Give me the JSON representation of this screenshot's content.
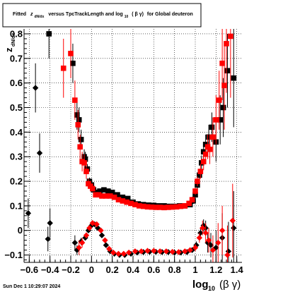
{
  "stats_box": {
    "title_prefix": "Fitted",
    "title_z": "z",
    "title_z_sub": "dN/dx",
    "title_mid": "versus TpcTrackLength and log",
    "title_log_sub": "10",
    "title_paren": "( β γ)",
    "title_suffix": "for Global deuteron"
  },
  "footer": {
    "timestamp": "Sun Dec  1 10:29:07 2024"
  },
  "chart_data": {
    "type": "scatter",
    "ylabel": {
      "main": "z",
      "sub": "dN/dx"
    },
    "xlabel": {
      "main": "log",
      "sub": "10",
      "suffix": "(β γ)"
    },
    "xlim": [
      -0.65,
      1.45
    ],
    "ylim": [
      -0.13,
      0.82
    ],
    "x_ticks": [
      -0.6,
      -0.4,
      -0.2,
      0,
      0.2,
      0.4,
      0.6,
      0.8,
      1,
      1.2,
      1.4
    ],
    "x_tick_labels": [
      "−0.6",
      "−0.4",
      "−0.2",
      "0",
      "0.2",
      "0.4",
      "0.6",
      "0.8",
      "1",
      "1.2",
      "1.4"
    ],
    "y_ticks": [
      -0.1,
      0,
      0.1,
      0.2,
      0.3,
      0.4,
      0.5,
      0.6,
      0.7,
      0.8
    ],
    "y_tick_labels": [
      "−0.1",
      "0",
      "0.1",
      "0.2",
      "0.3",
      "0.4",
      "0.5",
      "0.6",
      "0.7",
      "0.8"
    ],
    "grid": true,
    "colors": {
      "black": "#000000",
      "red": "#ff0000"
    },
    "series": [
      {
        "marker": "square",
        "color": "#000000",
        "points": [
          [
            -0.41,
            0.8,
            0.1
          ],
          [
            -0.18,
            0.68,
            0.08
          ],
          [
            -0.14,
            0.47,
            0.06
          ],
          [
            -0.12,
            0.45,
            0.05
          ],
          [
            -0.1,
            0.37,
            0.04
          ],
          [
            -0.07,
            0.3,
            0.03
          ],
          [
            -0.06,
            0.29,
            0.03
          ],
          [
            -0.04,
            0.25,
            0.02
          ],
          [
            -0.02,
            0.2,
            0.015
          ],
          [
            0.0,
            0.185,
            0.012
          ],
          [
            0.02,
            0.165,
            0.01
          ],
          [
            0.05,
            0.155,
            0.008
          ],
          [
            0.08,
            0.16,
            0.007
          ],
          [
            0.12,
            0.165,
            0.006
          ],
          [
            0.16,
            0.16,
            0.006
          ],
          [
            0.2,
            0.155,
            0.006
          ],
          [
            0.25,
            0.145,
            0.006
          ],
          [
            0.3,
            0.135,
            0.006
          ],
          [
            0.35,
            0.13,
            0.006
          ],
          [
            0.4,
            0.115,
            0.006
          ],
          [
            0.45,
            0.108,
            0.006
          ],
          [
            0.5,
            0.105,
            0.006
          ],
          [
            0.55,
            0.103,
            0.006
          ],
          [
            0.6,
            0.102,
            0.006
          ],
          [
            0.65,
            0.1,
            0.006
          ],
          [
            0.7,
            0.1,
            0.006
          ],
          [
            0.75,
            0.098,
            0.006
          ],
          [
            0.8,
            0.098,
            0.006
          ],
          [
            0.85,
            0.1,
            0.007
          ],
          [
            0.9,
            0.1,
            0.008
          ],
          [
            0.95,
            0.105,
            0.01
          ],
          [
            0.98,
            0.12,
            0.012
          ],
          [
            1.0,
            0.145,
            0.015
          ],
          [
            1.02,
            0.185,
            0.02
          ],
          [
            1.04,
            0.225,
            0.025
          ],
          [
            1.06,
            0.275,
            0.03
          ],
          [
            1.08,
            0.32,
            0.035
          ],
          [
            1.1,
            0.35,
            0.04
          ],
          [
            1.13,
            0.38,
            0.05
          ],
          [
            1.16,
            0.42,
            0.06
          ],
          [
            1.2,
            0.36,
            0.08
          ],
          [
            1.24,
            0.45,
            0.1
          ],
          [
            1.27,
            0.5,
            0.12
          ],
          [
            1.31,
            0.65,
            0.15
          ],
          [
            1.37,
            0.62,
            0.2
          ]
        ]
      },
      {
        "marker": "square",
        "color": "#ff0000",
        "points": [
          [
            -0.27,
            0.66,
            0.12
          ],
          [
            -0.2,
            0.72,
            0.1
          ],
          [
            -0.16,
            0.53,
            0.08
          ],
          [
            -0.13,
            0.43,
            0.06
          ],
          [
            -0.11,
            0.34,
            0.05
          ],
          [
            -0.09,
            0.28,
            0.04
          ],
          [
            -0.07,
            0.275,
            0.035
          ],
          [
            -0.05,
            0.24,
            0.03
          ],
          [
            -0.03,
            0.19,
            0.02
          ],
          [
            -0.01,
            0.18,
            0.015
          ],
          [
            0.01,
            0.17,
            0.012
          ],
          [
            0.04,
            0.145,
            0.01
          ],
          [
            0.07,
            0.145,
            0.008
          ],
          [
            0.1,
            0.14,
            0.007
          ],
          [
            0.14,
            0.14,
            0.007
          ],
          [
            0.18,
            0.14,
            0.007
          ],
          [
            0.22,
            0.135,
            0.007
          ],
          [
            0.26,
            0.125,
            0.007
          ],
          [
            0.3,
            0.12,
            0.007
          ],
          [
            0.34,
            0.115,
            0.007
          ],
          [
            0.38,
            0.11,
            0.007
          ],
          [
            0.42,
            0.105,
            0.007
          ],
          [
            0.46,
            0.1,
            0.007
          ],
          [
            0.5,
            0.098,
            0.007
          ],
          [
            0.54,
            0.096,
            0.007
          ],
          [
            0.58,
            0.095,
            0.007
          ],
          [
            0.62,
            0.094,
            0.007
          ],
          [
            0.66,
            0.094,
            0.007
          ],
          [
            0.7,
            0.093,
            0.007
          ],
          [
            0.74,
            0.094,
            0.007
          ],
          [
            0.78,
            0.095,
            0.007
          ],
          [
            0.82,
            0.096,
            0.007
          ],
          [
            0.86,
            0.098,
            0.008
          ],
          [
            0.9,
            0.1,
            0.009
          ],
          [
            0.94,
            0.11,
            0.01
          ],
          [
            0.97,
            0.125,
            0.012
          ],
          [
            1.0,
            0.16,
            0.015
          ],
          [
            1.02,
            0.2,
            0.02
          ],
          [
            1.05,
            0.24,
            0.03
          ],
          [
            1.08,
            0.28,
            0.035
          ],
          [
            1.1,
            0.31,
            0.04
          ],
          [
            1.12,
            0.34,
            0.05
          ],
          [
            1.14,
            0.33,
            0.06
          ],
          [
            1.17,
            0.38,
            0.08
          ],
          [
            1.2,
            0.45,
            0.1
          ],
          [
            1.23,
            0.53,
            0.12
          ],
          [
            1.26,
            0.68,
            0.15
          ],
          [
            1.28,
            0.59,
            0.18
          ],
          [
            1.3,
            0.76,
            0.2
          ],
          [
            1.34,
            0.79,
            0.25
          ]
        ]
      },
      {
        "marker": "diamond",
        "color": "#000000",
        "points": [
          [
            -0.61,
            0.07,
            0.06
          ],
          [
            -0.54,
            0.58,
            0.1
          ],
          [
            -0.5,
            0.315,
            0.08
          ],
          [
            -0.42,
            -0.035,
            0.05
          ],
          [
            -0.4,
            0.03,
            0.06
          ],
          [
            -0.16,
            -0.05,
            0.03
          ],
          [
            -0.14,
            -0.08,
            0.02
          ],
          [
            -0.1,
            -0.045,
            0.015
          ],
          [
            -0.06,
            -0.03,
            0.01
          ],
          [
            -0.03,
            0.0,
            0.008
          ],
          [
            0.0,
            0.02,
            0.006
          ],
          [
            0.03,
            0.025,
            0.005
          ],
          [
            0.06,
            0.01,
            0.005
          ],
          [
            0.1,
            -0.02,
            0.005
          ],
          [
            0.14,
            -0.06,
            0.005
          ],
          [
            0.18,
            -0.085,
            0.005
          ],
          [
            0.22,
            -0.095,
            0.005
          ],
          [
            0.27,
            -0.1,
            0.005
          ],
          [
            0.32,
            -0.1,
            0.005
          ],
          [
            0.38,
            -0.095,
            0.005
          ],
          [
            0.44,
            -0.09,
            0.005
          ],
          [
            0.5,
            -0.088,
            0.005
          ],
          [
            0.56,
            -0.087,
            0.005
          ],
          [
            0.62,
            -0.087,
            0.005
          ],
          [
            0.68,
            -0.088,
            0.005
          ],
          [
            0.74,
            -0.088,
            0.005
          ],
          [
            0.8,
            -0.09,
            0.006
          ],
          [
            0.86,
            -0.09,
            0.007
          ],
          [
            0.92,
            -0.088,
            0.008
          ],
          [
            0.97,
            -0.08,
            0.01
          ],
          [
            1.01,
            -0.06,
            0.015
          ],
          [
            1.05,
            -0.01,
            0.02
          ],
          [
            1.08,
            0.02,
            0.025
          ],
          [
            1.1,
            0.01,
            0.03
          ],
          [
            1.12,
            -0.05,
            0.04
          ],
          [
            1.15,
            -0.06,
            0.05
          ],
          [
            1.2,
            -0.07,
            0.07
          ],
          [
            1.26,
            -0.03,
            0.1
          ],
          [
            1.32,
            -0.085,
            0.12
          ],
          [
            1.37,
            0.01,
            0.15
          ]
        ]
      },
      {
        "marker": "diamond",
        "color": "#ff0000",
        "points": [
          [
            -0.12,
            -0.07,
            0.03
          ],
          [
            -0.09,
            -0.05,
            0.02
          ],
          [
            -0.05,
            -0.02,
            0.012
          ],
          [
            -0.02,
            0.01,
            0.008
          ],
          [
            0.01,
            0.03,
            0.006
          ],
          [
            0.05,
            0.025,
            0.005
          ],
          [
            0.09,
            0.0,
            0.005
          ],
          [
            0.13,
            -0.04,
            0.005
          ],
          [
            0.17,
            -0.075,
            0.005
          ],
          [
            0.21,
            -0.09,
            0.005
          ],
          [
            0.26,
            -0.095,
            0.005
          ],
          [
            0.31,
            -0.095,
            0.005
          ],
          [
            0.36,
            -0.09,
            0.005
          ],
          [
            0.42,
            -0.085,
            0.005
          ],
          [
            0.48,
            -0.085,
            0.005
          ],
          [
            0.54,
            -0.083,
            0.005
          ],
          [
            0.6,
            -0.083,
            0.005
          ],
          [
            0.66,
            -0.085,
            0.005
          ],
          [
            0.72,
            -0.085,
            0.005
          ],
          [
            0.78,
            -0.087,
            0.006
          ],
          [
            0.84,
            -0.088,
            0.007
          ],
          [
            0.9,
            -0.085,
            0.008
          ],
          [
            0.95,
            -0.08,
            0.01
          ],
          [
            1.0,
            -0.07,
            0.015
          ],
          [
            1.04,
            -0.03,
            0.02
          ],
          [
            1.07,
            0.01,
            0.03
          ],
          [
            1.1,
            -0.01,
            0.04
          ],
          [
            1.13,
            -0.04,
            0.05
          ],
          [
            1.17,
            -0.08,
            0.06
          ],
          [
            1.22,
            -0.05,
            0.08
          ],
          [
            1.26,
            0.0,
            0.1
          ],
          [
            1.31,
            -0.1,
            0.12
          ],
          [
            1.36,
            0.04,
            0.15
          ]
        ]
      }
    ]
  }
}
